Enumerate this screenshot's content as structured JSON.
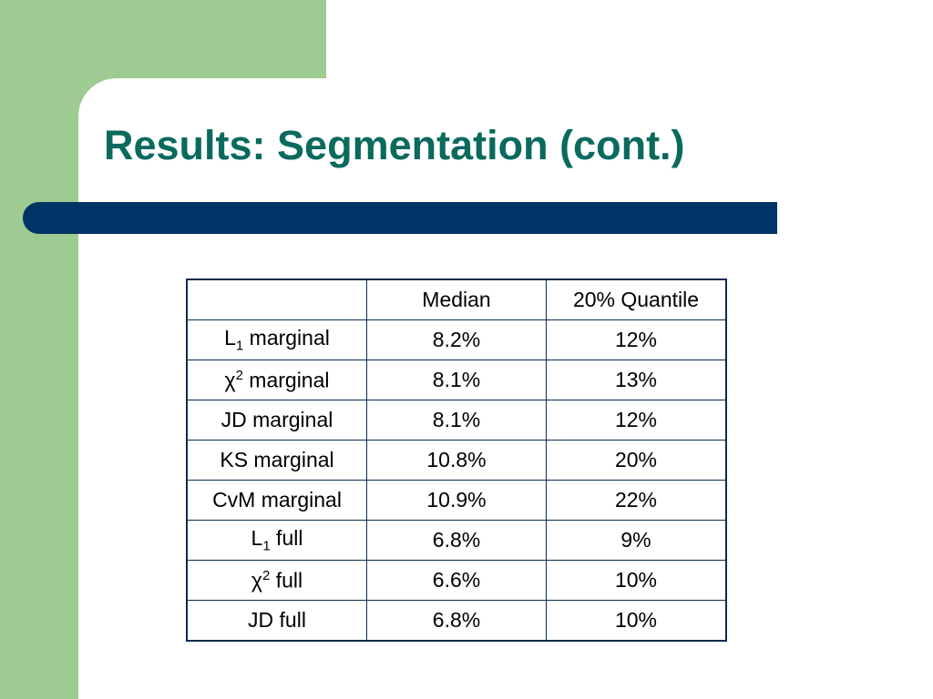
{
  "header": {
    "title": "Results: Segmentation (cont.)"
  },
  "table": {
    "columns": [
      "Median",
      "20% Quantile"
    ],
    "rows": [
      {
        "label": {
          "text": "L",
          "sub": "1",
          "suffix": " marginal"
        },
        "cells": [
          "8.2%",
          "12%"
        ]
      },
      {
        "label": {
          "text": "χ",
          "sup": "2",
          "suffix": " marginal"
        },
        "cells": [
          "8.1%",
          "13%"
        ]
      },
      {
        "label": {
          "text": "JD marginal"
        },
        "cells": [
          "8.1%",
          "12%"
        ]
      },
      {
        "label": {
          "text": "KS marginal"
        },
        "cells": [
          "10.8%",
          "20%"
        ]
      },
      {
        "label": {
          "text": "CvM marginal"
        },
        "cells": [
          "10.9%",
          "22%"
        ]
      },
      {
        "label": {
          "text": "L",
          "sub": "1",
          "suffix": " full"
        },
        "cells": [
          "6.8%",
          "9%"
        ]
      },
      {
        "label": {
          "text": "χ",
          "sup": "2",
          "suffix": " full"
        },
        "cells": [
          "6.6%",
          "10%"
        ]
      },
      {
        "label": {
          "text": "JD full"
        },
        "cells": [
          "6.8%",
          "10%"
        ]
      }
    ]
  }
}
